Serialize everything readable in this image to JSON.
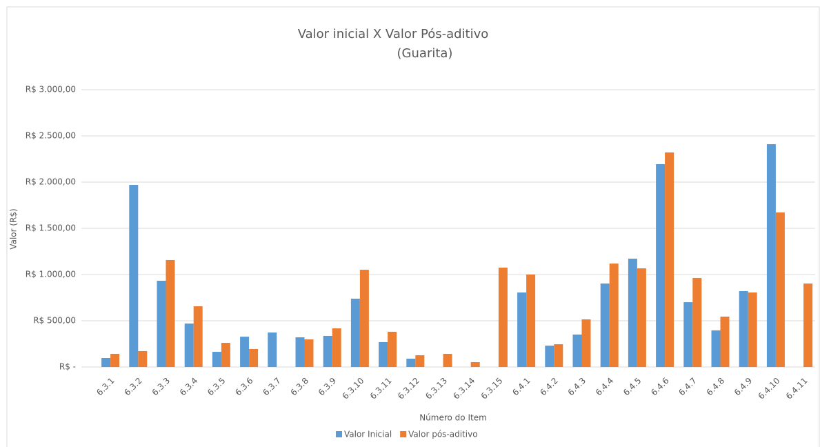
{
  "chart_data": {
    "type": "bar",
    "title": "Valor inicial X Valor Pós-aditivo",
    "subtitle": "(Guarita)",
    "x_label": "Número do Item",
    "y_label": "Valor (R$)",
    "categories": [
      "6.3.1",
      "6.3.2",
      "6.3.3",
      "6.3.4",
      "6.3.5",
      "6.3.6",
      "6.3.7",
      "6.3.8",
      "6.3.9",
      "6.3.10",
      "6.3.11",
      "6.3.12",
      "6.3.13",
      "6.3.14",
      "6.3.15",
      "6.4.1",
      "6.4.2",
      "6.4.3",
      "6.4.4",
      "6.4.5",
      "6.4.6",
      "6.4.7",
      "6.4.8",
      "6.4.9",
      "6.4.10",
      "6.4.11"
    ],
    "series": [
      {
        "name": "Valor Inicial",
        "color": "#5b9bd5",
        "values": [
          97,
          1970,
          933,
          470,
          164,
          328,
          373,
          321,
          336,
          739,
          269,
          90,
          null,
          null,
          null,
          806,
          231,
          351,
          903,
          1172,
          2194,
          701,
          396,
          821,
          2410,
          null
        ]
      },
      {
        "name": "Valor pós-aditivo",
        "color": "#ed7d31",
        "values": [
          142,
          172,
          1157,
          657,
          261,
          194,
          null,
          299,
          418,
          1052,
          381,
          127,
          142,
          52,
          1075,
          1000,
          246,
          515,
          1119,
          1067,
          2321,
          963,
          545,
          806,
          1672,
          903
        ]
      }
    ],
    "ylim": [
      0,
      3000
    ],
    "yticks": [
      {
        "value": 0,
        "label": "R$ -"
      },
      {
        "value": 500,
        "label": "R$ 500,00"
      },
      {
        "value": 1000,
        "label": "R$ 1.000,00"
      },
      {
        "value": 1500,
        "label": "R$ 1.500,00"
      },
      {
        "value": 2000,
        "label": "R$ 2.000,00"
      },
      {
        "value": 2500,
        "label": "R$ 2.500,00"
      },
      {
        "value": 3000,
        "label": "R$ 3.000,00"
      }
    ],
    "grid": true,
    "legend": "bottom"
  }
}
